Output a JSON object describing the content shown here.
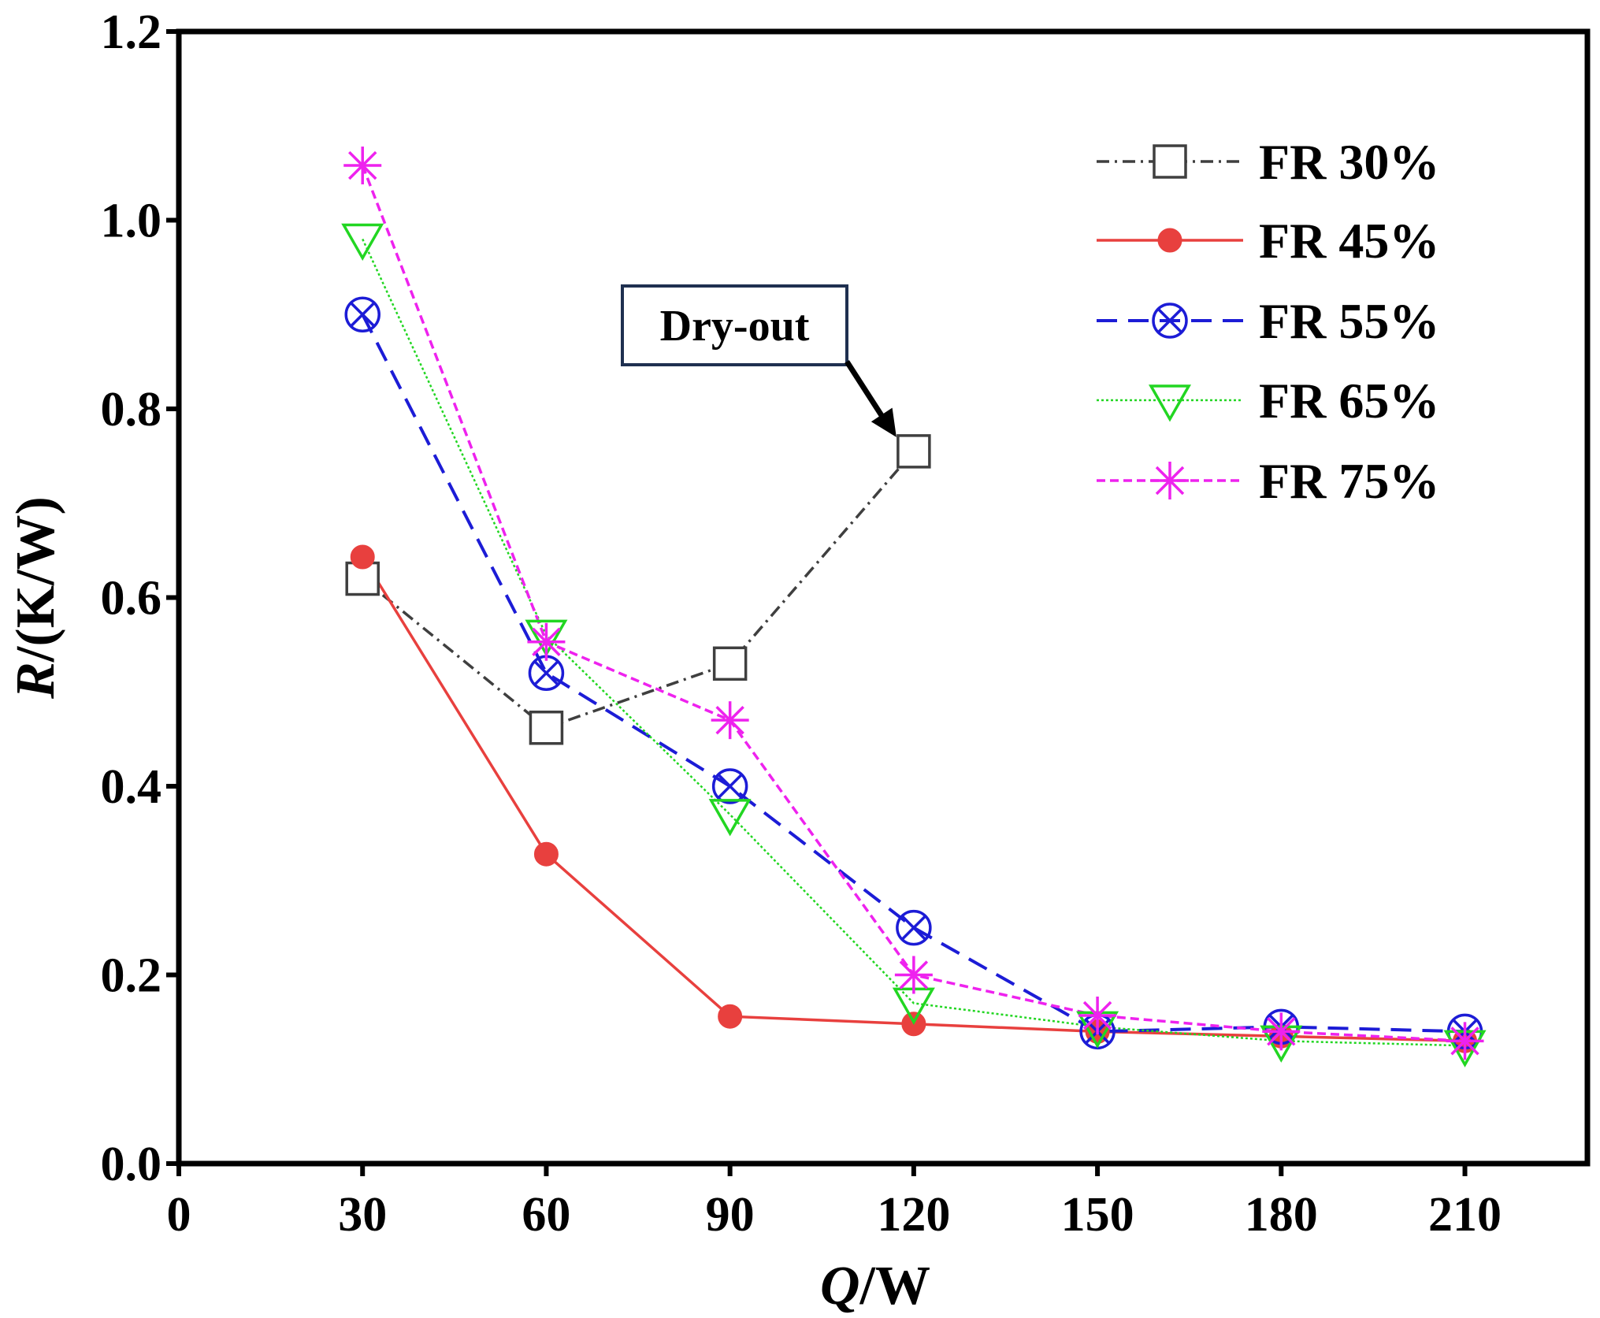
{
  "chart_data": {
    "type": "line",
    "title": "",
    "xlabel": {
      "italic": "Q",
      "rest": "/W"
    },
    "ylabel": {
      "italic": "R",
      "rest": "/(K/W)"
    },
    "xlim": [
      0,
      230
    ],
    "ylim": [
      0,
      1.2
    ],
    "x_ticks": [
      0,
      30,
      60,
      90,
      120,
      150,
      180,
      210
    ],
    "x_tick_labels": [
      "0",
      "30",
      "60",
      "90",
      "120",
      "150",
      "180",
      "210"
    ],
    "y_ticks": [
      0,
      0.2,
      0.4,
      0.6,
      0.8,
      1.0,
      1.2
    ],
    "y_tick_labels": [
      "0.0",
      "0.2",
      "0.4",
      "0.6",
      "0.8",
      "1.0",
      "1.2"
    ],
    "grid": false,
    "legend_position": "top-right",
    "series": [
      {
        "name": "FR 30%",
        "color": "#3f3f3f",
        "dash": "dashdot",
        "marker": "square",
        "x": [
          30,
          60,
          90,
          120
        ],
        "values": [
          0.62,
          0.462,
          0.53,
          0.755
        ]
      },
      {
        "name": "FR 45%",
        "color": "#e8403e",
        "dash": "solid",
        "marker": "circle-filled",
        "x": [
          30,
          60,
          90,
          120,
          150,
          180,
          210
        ],
        "values": [
          0.643,
          0.328,
          0.156,
          0.148,
          0.14,
          0.135,
          0.13
        ]
      },
      {
        "name": "FR 55%",
        "color": "#1c1cd6",
        "dash": "dashed",
        "marker": "circle-x",
        "x": [
          30,
          60,
          90,
          120,
          150,
          180,
          210
        ],
        "values": [
          0.9,
          0.52,
          0.4,
          0.25,
          0.14,
          0.145,
          0.14
        ]
      },
      {
        "name": "FR 65%",
        "color": "#22d622",
        "dash": "dotted",
        "marker": "triangle-down",
        "x": [
          30,
          60,
          90,
          120,
          150,
          180,
          210
        ],
        "values": [
          0.98,
          0.56,
          0.37,
          0.17,
          0.145,
          0.13,
          0.125
        ]
      },
      {
        "name": "FR 75%",
        "color": "#ee22ee",
        "dash": "shortdash",
        "marker": "asterisk",
        "x": [
          30,
          60,
          90,
          120,
          150,
          180,
          210
        ],
        "values": [
          1.058,
          0.553,
          0.47,
          0.2,
          0.157,
          0.14,
          0.13
        ]
      }
    ],
    "annotations": [
      {
        "text": "Dry-out",
        "points_to": {
          "series": "FR 30%",
          "x": 120,
          "y": 0.755
        },
        "box_color": "#1f3050"
      }
    ]
  }
}
